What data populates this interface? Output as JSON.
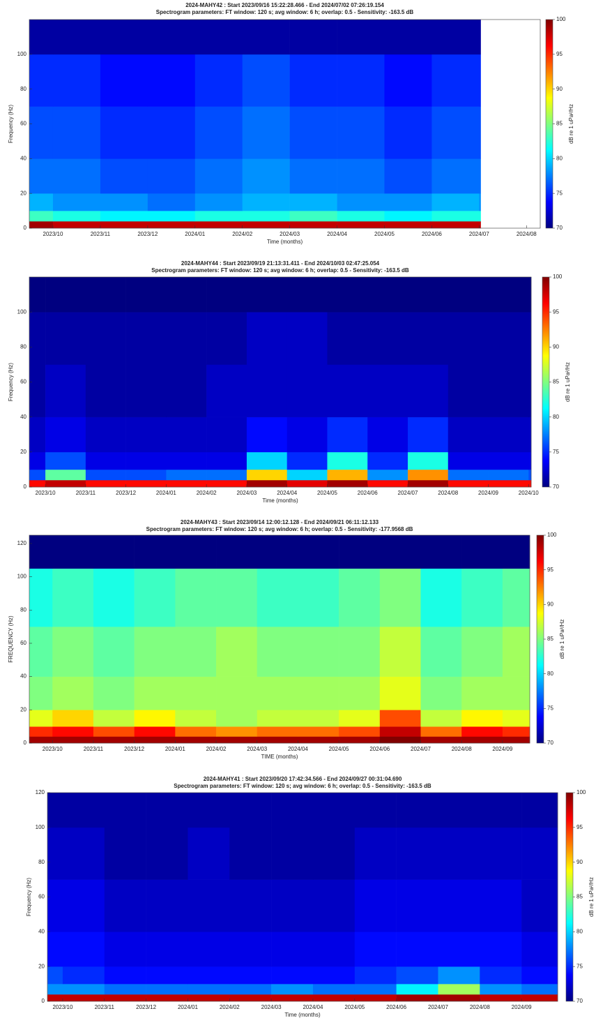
{
  "chart_data": [
    {
      "type": "spectrogram",
      "title": "2024-MAHY42 : Start 2023/09/16 15:22:28.466 - End 2024/07/02 07:26:19.154",
      "subtitle": "Spectrogram parameters: FT window: 120 s; avg window: 6 h; overlap: 0.5 - Sensitivity: -163.5 dB",
      "xlabel": "Time (months)",
      "ylabel": "Frequency (Hz)",
      "clabel": "dB re 1 uPa²/Hz",
      "colormap": "jet",
      "time_bins": [
        "2023/09/16",
        "2023/10",
        "2023/11",
        "2023/12",
        "2024/01",
        "2024/02",
        "2024/03",
        "2024/04",
        "2024/05",
        "2024/06",
        "2024/07",
        "2024/07/02"
      ],
      "freq_bins": [
        0,
        4,
        10,
        20,
        40,
        70,
        100,
        120
      ],
      "values": [
        [
          99,
          98,
          98,
          98,
          98,
          98,
          98,
          98,
          98,
          98,
          98
        ],
        [
          83,
          82,
          81,
          81,
          82,
          82,
          83,
          82,
          81,
          82,
          82
        ],
        [
          79,
          78,
          78,
          77,
          78,
          79,
          79,
          78,
          78,
          79,
          78
        ],
        [
          77,
          77,
          76,
          76,
          77,
          78,
          77,
          77,
          76,
          77,
          77
        ],
        [
          76,
          76,
          75,
          75,
          76,
          77,
          76,
          76,
          75,
          76,
          76
        ],
        [
          75,
          75,
          74,
          74,
          75,
          76,
          75,
          75,
          74,
          75,
          75
        ],
        [
          71,
          71,
          71,
          71,
          71,
          71,
          71,
          71,
          71,
          71,
          71
        ]
      ],
      "xlim": [
        "2023/09/16",
        "2024/08/10"
      ],
      "xticks": [
        "2023/10",
        "2023/11",
        "2023/12",
        "2024/01",
        "2024/02",
        "2024/03",
        "2024/04",
        "2024/05",
        "2024/06",
        "2024/07",
        "2024/08"
      ],
      "ylim": [
        0,
        120
      ],
      "yticks": [
        0,
        20,
        40,
        60,
        80,
        100
      ],
      "clim": [
        70,
        100
      ],
      "cticks": [
        70,
        75,
        80,
        85,
        90,
        95,
        100
      ]
    },
    {
      "type": "spectrogram",
      "title": "2024-MAHY44 : Start 2023/09/19 21:13:31.411 - End 2024/10/03 02:47:25.054",
      "subtitle": "Spectrogram parameters: FT window: 120 s; avg window: 6 h; overlap: 0.5 - Sensitivity: -163.5 dB",
      "xlabel": "Time (months)",
      "ylabel": "Frequency (Hz)",
      "clabel": "dB re 1 uPa²/Hz",
      "colormap": "jet",
      "time_bins": [
        "2023/09/19",
        "2023/10",
        "2023/11",
        "2023/12",
        "2024/01",
        "2024/02",
        "2024/03",
        "2024/04",
        "2024/05",
        "2024/06",
        "2024/07",
        "2024/08",
        "2024/09",
        "2024/10",
        "2024/10/03"
      ],
      "freq_bins": [
        0,
        4,
        10,
        20,
        40,
        70,
        100,
        120
      ],
      "values": [
        [
          96,
          98,
          96,
          96,
          96,
          96,
          99,
          97,
          99,
          96,
          99,
          96,
          96,
          96
        ],
        [
          76,
          84,
          76,
          76,
          77,
          77,
          90,
          80,
          91,
          78,
          92,
          77,
          77,
          76
        ],
        [
          73,
          76,
          73,
          73,
          73,
          73,
          80,
          75,
          82,
          75,
          82,
          73,
          73,
          73
        ],
        [
          72,
          73,
          72,
          72,
          72,
          72,
          74,
          73,
          75,
          73,
          75,
          72,
          72,
          72
        ],
        [
          71,
          72,
          71,
          71,
          71,
          72,
          72,
          72,
          72,
          72,
          72,
          71,
          71,
          71
        ],
        [
          71,
          71,
          71,
          71,
          71,
          71,
          72,
          72,
          71,
          71,
          71,
          71,
          71,
          71
        ],
        [
          70,
          70,
          70,
          70,
          70,
          70,
          70,
          70,
          70,
          70,
          70,
          70,
          70,
          70
        ]
      ],
      "xlim": [
        "2023/09/19",
        "2024/10/03"
      ],
      "xticks": [
        "2023/10",
        "2023/11",
        "2023/12",
        "2024/01",
        "2024/02",
        "2024/03",
        "2024/04",
        "2024/05",
        "2024/06",
        "2024/07",
        "2024/08",
        "2024/09",
        "2024/10"
      ],
      "ylim": [
        0,
        120
      ],
      "yticks": [
        0,
        20,
        40,
        60,
        80,
        100
      ],
      "clim": [
        70,
        100
      ],
      "cticks": [
        70,
        75,
        80,
        85,
        90,
        95,
        100
      ]
    },
    {
      "type": "spectrogram",
      "title": "2024-MAHY43 : Start 2023/09/14 12:00:12.128 - End 2024/09/21 06:11:12.133",
      "subtitle": "Spectrogram parameters: FT window: 120 s; avg window: 6 h; overlap: 0.5 - Sensitivity: -177.9568 dB",
      "xlabel": "TIME (months)",
      "ylabel": "FREQUENCY (Hz)",
      "clabel": "dB re 1 uPa²/Hz",
      "colormap": "jet",
      "time_bins": [
        "2023/09/14",
        "2023/10",
        "2023/11",
        "2023/12",
        "2024/01",
        "2024/02",
        "2024/03",
        "2024/04",
        "2024/05",
        "2024/06",
        "2024/07",
        "2024/08",
        "2024/09",
        "2024/09/21"
      ],
      "freq_bins": [
        0,
        4,
        10,
        20,
        40,
        70,
        105,
        125
      ],
      "values": [
        [
          99,
          99,
          99,
          99,
          99,
          99,
          99,
          99,
          99,
          100,
          99,
          99,
          99
        ],
        [
          95,
          96,
          94,
          96,
          93,
          92,
          93,
          93,
          94,
          98,
          93,
          96,
          95
        ],
        [
          88,
          90,
          87,
          89,
          87,
          86,
          87,
          87,
          88,
          94,
          87,
          89,
          88
        ],
        [
          85,
          86,
          85,
          86,
          86,
          86,
          86,
          86,
          86,
          88,
          85,
          86,
          86
        ],
        [
          84,
          85,
          84,
          85,
          85,
          86,
          85,
          85,
          85,
          87,
          84,
          85,
          86
        ],
        [
          82,
          83,
          82,
          83,
          84,
          84,
          83,
          83,
          84,
          85,
          82,
          83,
          84
        ],
        [
          70,
          70,
          70,
          70,
          70,
          70,
          70,
          70,
          70,
          70,
          70,
          70,
          70
        ]
      ],
      "xlim": [
        "2023/09/14",
        "2024/09/21"
      ],
      "xticks": [
        "2023/10",
        "2023/11",
        "2023/12",
        "2024/01",
        "2024/02",
        "2024/03",
        "2024/04",
        "2024/05",
        "2024/06",
        "2024/07",
        "2024/08",
        "2024/09"
      ],
      "ylim": [
        0,
        125
      ],
      "yticks": [
        0,
        20,
        40,
        60,
        80,
        100,
        120
      ],
      "clim": [
        70,
        100
      ],
      "cticks": [
        70,
        75,
        80,
        85,
        90,
        95,
        100
      ]
    },
    {
      "type": "spectrogram",
      "title": "2024-MAHY41 : Start 2023/09/20 17:42:34.566 - End 2024/09/27 00:31:04.690",
      "subtitle": "Spectrogram parameters: FT window: 120 s; avg window: 6 h; overlap: 0.5 - Sensitivity: -163.5 dB",
      "xlabel": "Time (months)",
      "ylabel": "Frequency (Hz)",
      "clabel": "dB re 1 uPa²/Hz",
      "colormap": "jet",
      "time_bins": [
        "2023/09/20",
        "2023/10",
        "2023/11",
        "2023/12",
        "2024/01",
        "2024/02",
        "2024/03",
        "2024/04",
        "2024/05",
        "2024/06",
        "2024/07",
        "2024/08",
        "2024/09",
        "2024/09/27"
      ],
      "freq_bins": [
        0,
        4,
        10,
        20,
        40,
        70,
        100,
        120
      ],
      "values": [
        [
          98,
          98,
          98,
          98,
          98,
          98,
          98,
          98,
          98,
          99,
          99,
          98,
          98
        ],
        [
          78,
          78,
          77,
          77,
          77,
          77,
          78,
          77,
          77,
          81,
          86,
          78,
          77
        ],
        [
          76,
          75,
          74,
          74,
          74,
          74,
          74,
          74,
          75,
          76,
          78,
          75,
          74
        ],
        [
          74,
          74,
          73,
          73,
          73,
          73,
          73,
          73,
          74,
          74,
          74,
          74,
          73
        ],
        [
          73,
          73,
          72,
          72,
          72,
          72,
          72,
          72,
          73,
          73,
          73,
          73,
          72
        ],
        [
          72,
          72,
          71,
          71,
          72,
          71,
          71,
          71,
          72,
          72,
          72,
          72,
          72
        ],
        [
          71,
          71,
          71,
          71,
          71,
          71,
          71,
          71,
          71,
          71,
          71,
          71,
          71
        ]
      ],
      "xlim": [
        "2023/09/20",
        "2024/09/27"
      ],
      "xticks": [
        "2023/10",
        "2023/11",
        "2023/12",
        "2024/01",
        "2024/02",
        "2024/03",
        "2024/04",
        "2024/05",
        "2024/06",
        "2024/07",
        "2024/08",
        "2024/09"
      ],
      "ylim": [
        0,
        120
      ],
      "yticks": [
        0,
        20,
        40,
        60,
        80,
        100,
        120
      ],
      "clim": [
        70,
        100
      ],
      "cticks": [
        70,
        75,
        80,
        85,
        90,
        95,
        100
      ]
    }
  ]
}
